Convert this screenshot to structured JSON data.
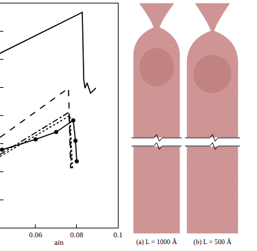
{
  "chart_data": {
    "type": "line",
    "x_label": "ain",
    "xlim": [
      0.0427,
      0.1
    ],
    "xticks": [
      0.06,
      0.08,
      0.1
    ],
    "ylim": [
      0,
      8
    ],
    "yticks": [
      0,
      1,
      2,
      3,
      4,
      5,
      6,
      7,
      8
    ],
    "tick_labels": "x",
    "grid": false,
    "series": [
      {
        "color": "#000000",
        "line_style": "solid",
        "x": [
          0.0427,
          0.0827,
          0.0834,
          0.084,
          0.085,
          0.0867,
          0.0893
        ],
        "values": [
          6.22,
          7.68,
          5.3,
          4.98,
          5.17,
          4.8,
          4.98
        ]
      },
      {
        "color": "#000000",
        "line_style": "dash",
        "x": [
          0.0427,
          0.076,
          0.077
        ],
        "values": [
          3.22,
          4.98,
          2.12
        ]
      },
      {
        "color": "#000000",
        "line_style": "dashdot",
        "x": [
          0.0427,
          0.0763,
          0.0774
        ],
        "values": [
          2.61,
          4.12,
          2.12
        ]
      },
      {
        "color": "#000000",
        "line_style": "dot",
        "x": [
          0.0427,
          0.0767,
          0.078
        ],
        "values": [
          2.54,
          4.0,
          2.05
        ]
      },
      {
        "color": "#000000",
        "line_style": "solid",
        "marker": "circle",
        "x": [
          0.0437,
          0.06,
          0.07,
          0.0783,
          0.0794,
          0.08
        ],
        "values": [
          2.78,
          3.15,
          3.41,
          3.83,
          3.1,
          2.37
        ]
      }
    ]
  },
  "figure": {
    "panels": [
      {
        "caption": "(a) L = 1000 Å"
      },
      {
        "caption": "(b) L = 500 Å"
      }
    ]
  }
}
